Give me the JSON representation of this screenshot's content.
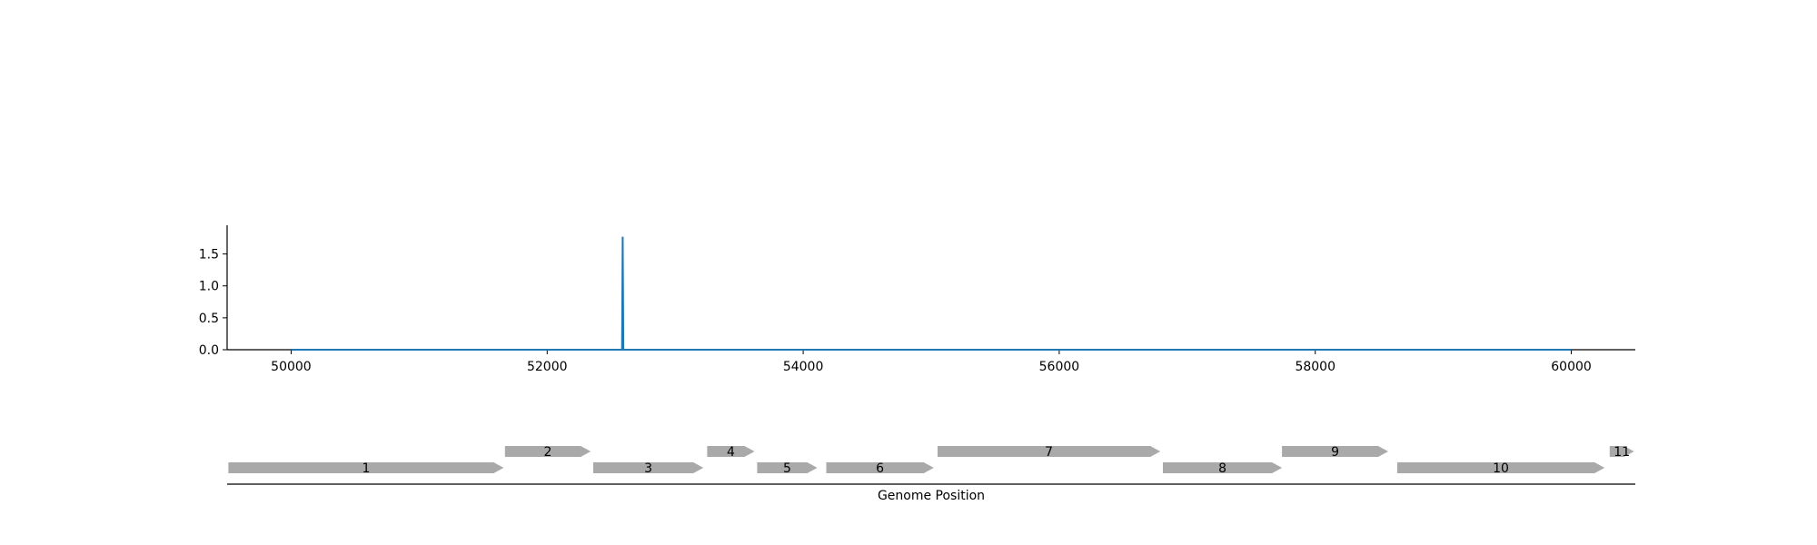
{
  "chart_data": [
    {
      "type": "line",
      "title": "",
      "xlabel": "",
      "ylabel": "",
      "xlim": [
        49500,
        60500
      ],
      "ylim": [
        0,
        1.95
      ],
      "x_ticks": [
        "50000",
        "52000",
        "54000",
        "56000",
        "58000",
        "60000"
      ],
      "y_ticks": [
        "0.0",
        "0.5",
        "1.0",
        "1.5"
      ],
      "grid": false,
      "series": [
        {
          "color": "#1f77b4",
          "x": [
            50000,
            52585,
            52590,
            52595,
            60000
          ],
          "y": [
            0,
            0,
            1.77,
            0,
            0
          ]
        }
      ]
    },
    {
      "type": "gene_track",
      "xlabel": "Genome Position",
      "xlim": [
        49500,
        60500
      ],
      "gene_color": "#a9a9a9",
      "genes": [
        {
          "label": "1",
          "start": 49510,
          "end": 51660,
          "strand": "+",
          "row": 0
        },
        {
          "label": "2",
          "start": 51670,
          "end": 52340,
          "strand": "+",
          "row": 1
        },
        {
          "label": "3",
          "start": 52360,
          "end": 53220,
          "strand": "+",
          "row": 0
        },
        {
          "label": "4",
          "start": 53250,
          "end": 53620,
          "strand": "+",
          "row": 1
        },
        {
          "label": "5",
          "start": 53640,
          "end": 54110,
          "strand": "+",
          "row": 0
        },
        {
          "label": "6",
          "start": 54180,
          "end": 55020,
          "strand": "+",
          "row": 0
        },
        {
          "label": "7",
          "start": 55050,
          "end": 56790,
          "strand": "+",
          "row": 1
        },
        {
          "label": "8",
          "start": 56810,
          "end": 57740,
          "strand": "+",
          "row": 0
        },
        {
          "label": "9",
          "start": 57740,
          "end": 58570,
          "strand": "+",
          "row": 1
        },
        {
          "label": "10",
          "start": 58640,
          "end": 60260,
          "strand": "+",
          "row": 0
        },
        {
          "label": "11",
          "start": 60300,
          "end": 60490,
          "strand": "+",
          "row": 1
        }
      ]
    }
  ]
}
